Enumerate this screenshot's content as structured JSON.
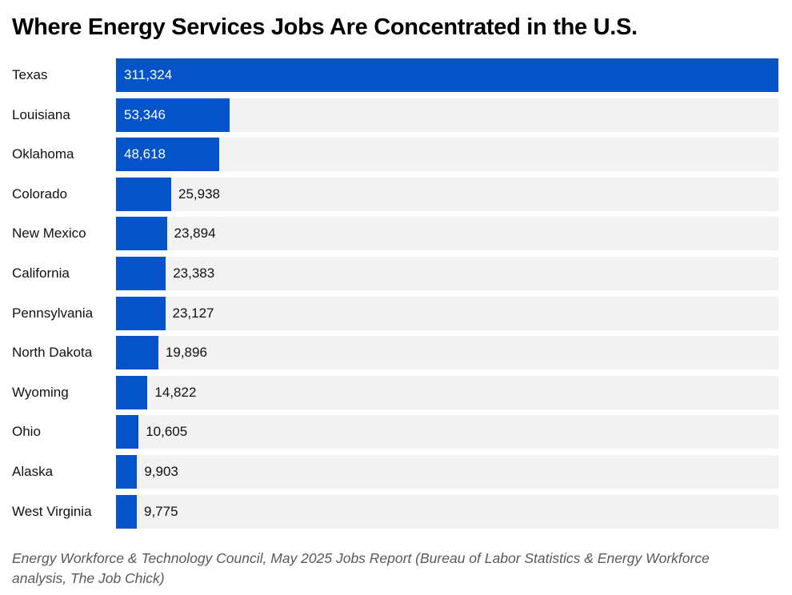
{
  "title": "Where Energy Services Jobs Are Concentrated in the U.S.",
  "source": {
    "line1": "Energy Workforce & Technology Council, May 2025 Jobs Report (Bureau of Labor Statistics & Energy Workforce",
    "line2": "analysis, The Job Chick)"
  },
  "colors": {
    "bar": "#0553c8",
    "track": "#f2f2f2",
    "value_inside": "#ffffff",
    "value_outside": "#111111",
    "title": "#000000",
    "source_text": "#595959",
    "background": "#ffffff"
  },
  "chart_data": {
    "type": "bar",
    "orientation": "horizontal",
    "title": "Where Energy Services Jobs Are Concentrated in the U.S.",
    "categories": [
      "Texas",
      "Louisiana",
      "Oklahoma",
      "Colorado",
      "New Mexico",
      "California",
      "Pennsylvania",
      "North Dakota",
      "Wyoming",
      "Ohio",
      "Alaska",
      "West Virginia"
    ],
    "values": [
      311324,
      53346,
      48618,
      25938,
      23894,
      23383,
      23127,
      19896,
      14822,
      10605,
      9903,
      9775
    ],
    "value_labels": [
      "311,324",
      "53,346",
      "48,618",
      "25,938",
      "23,894",
      "23,383",
      "23,127",
      "19,896",
      "14,822",
      "10,605",
      "9,903",
      "9,775"
    ],
    "xlabel": "",
    "ylabel": "",
    "xlim": [
      0,
      311324
    ],
    "grid": false,
    "legend": false,
    "value_label_inside_threshold_pct": 12
  }
}
